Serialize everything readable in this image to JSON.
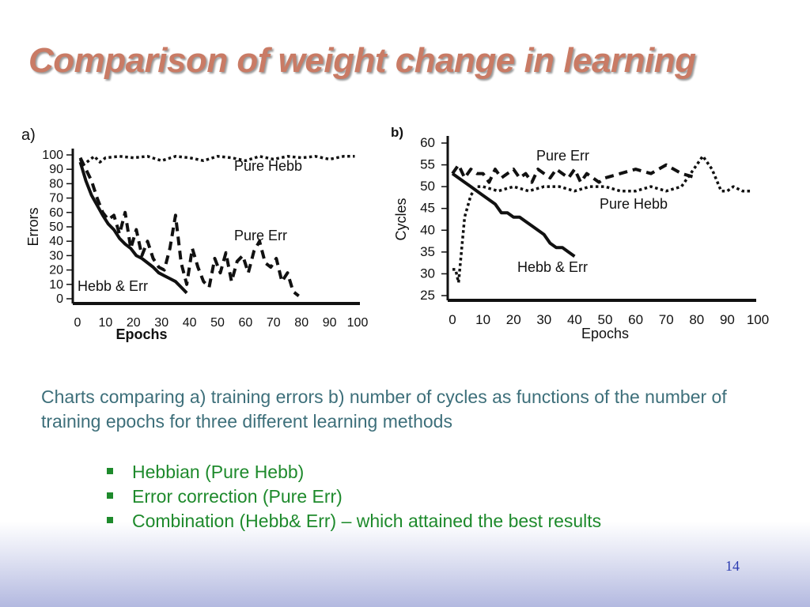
{
  "slide": {
    "title": "Comparison of weight change in learning",
    "caption": "Charts comparing a) training errors b) number of cycles  as functions of the number of training epochs for three different learning methods",
    "bullets": [
      "Hebbian (Pure Hebb)",
      "Error correction (Pure Err)",
      "Combination (Hebb& Err) – which attained the best results"
    ],
    "page_number": "14",
    "colors": {
      "title": "#c97b65",
      "caption": "#3d6f7a",
      "bullets": "#1e8a2c",
      "page_number": "#2b3bb0",
      "lines": "#111111"
    }
  },
  "chart_data": [
    {
      "panel_label": "a)",
      "type": "line",
      "xlabel": "Epochs",
      "ylabel": "Errors",
      "xlim": [
        0,
        100
      ],
      "ylim": [
        0,
        100
      ],
      "xticks": [
        "0",
        "10",
        "20",
        "30",
        "40",
        "50",
        "60",
        "70",
        "80",
        "90",
        "100"
      ],
      "yticks": [
        "100",
        "90",
        "80",
        "70",
        "60",
        "50",
        "40",
        "30",
        "20",
        "10",
        "0"
      ],
      "grid": false,
      "series": [
        {
          "name": "Pure Hebb",
          "style": "dotted",
          "x": [
            1,
            2,
            4,
            6,
            8,
            10,
            15,
            20,
            25,
            30,
            35,
            40,
            45,
            50,
            55,
            60,
            65,
            70,
            75,
            80,
            85,
            90,
            95,
            99
          ],
          "y": [
            97,
            93,
            96,
            99,
            95,
            98,
            99,
            98,
            99,
            96,
            99,
            98,
            96,
            99,
            98,
            96,
            99,
            97,
            99,
            98,
            99,
            97,
            99,
            99
          ]
        },
        {
          "name": "Pure Err",
          "style": "dashed",
          "x": [
            1,
            3,
            5,
            7,
            9,
            11,
            13,
            15,
            17,
            19,
            21,
            23,
            25,
            27,
            29,
            31,
            33,
            35,
            37,
            39,
            41,
            43,
            45,
            47,
            49,
            51,
            53,
            55,
            57,
            59,
            61,
            63,
            65,
            67,
            69,
            71,
            73,
            75,
            77,
            79
          ],
          "y": [
            98,
            90,
            82,
            70,
            60,
            55,
            58,
            45,
            60,
            35,
            48,
            30,
            40,
            28,
            22,
            20,
            35,
            58,
            25,
            10,
            35,
            22,
            12,
            8,
            28,
            18,
            32,
            12,
            26,
            30,
            18,
            33,
            40,
            25,
            22,
            28,
            12,
            18,
            5,
            2
          ]
        },
        {
          "name": "Hebb & Err",
          "style": "solid",
          "x": [
            1,
            3,
            5,
            7,
            9,
            11,
            13,
            15,
            17,
            19,
            21,
            23,
            25,
            27,
            29,
            31,
            33,
            35,
            37,
            39
          ],
          "y": [
            95,
            82,
            72,
            65,
            58,
            52,
            48,
            42,
            38,
            35,
            30,
            28,
            25,
            22,
            18,
            16,
            14,
            12,
            8,
            4
          ]
        }
      ]
    },
    {
      "panel_label": "b)",
      "type": "line",
      "xlabel": "Epochs",
      "ylabel": "Cycles",
      "xlim": [
        0,
        100
      ],
      "ylim": [
        25,
        60
      ],
      "xticks": [
        "0",
        "10",
        "20",
        "30",
        "40",
        "50",
        "60",
        "70",
        "80",
        "90",
        "100"
      ],
      "yticks": [
        "60",
        "55",
        "50",
        "45",
        "40",
        "35",
        "30",
        "25"
      ],
      "grid": false,
      "series": [
        {
          "name": "Pure Err",
          "style": "dashed",
          "x": [
            0,
            2,
            4,
            6,
            8,
            10,
            12,
            14,
            16,
            18,
            20,
            22,
            24,
            26,
            28,
            30,
            32,
            34,
            36,
            38,
            40,
            42,
            44,
            46,
            48,
            50,
            55,
            60,
            65,
            70,
            75,
            80
          ],
          "y": [
            53,
            55,
            52,
            54,
            53,
            53,
            51,
            54,
            52,
            53,
            54,
            52,
            53,
            51,
            54,
            53,
            52,
            54,
            53,
            52,
            54,
            51,
            53,
            52,
            51,
            52,
            53,
            54,
            53,
            55,
            53,
            52
          ]
        },
        {
          "name": "Pure Hebb",
          "style": "dotted",
          "x": [
            0,
            1,
            2,
            4,
            6,
            8,
            10,
            15,
            20,
            25,
            30,
            35,
            40,
            45,
            50,
            55,
            60,
            65,
            70,
            75,
            78,
            80,
            82,
            85,
            88,
            90,
            92,
            95,
            98
          ],
          "y": [
            31,
            31,
            28,
            43,
            48,
            50,
            50,
            49,
            50,
            49,
            50,
            50,
            49,
            50,
            50,
            49,
            49,
            50,
            49,
            50,
            53,
            55,
            57,
            54,
            49,
            49,
            50,
            49,
            49
          ]
        },
        {
          "name": "Hebb & Err",
          "style": "solid",
          "x": [
            0,
            2,
            4,
            6,
            8,
            10,
            12,
            14,
            16,
            18,
            20,
            22,
            24,
            26,
            28,
            30,
            32,
            34,
            36,
            38,
            40
          ],
          "y": [
            53,
            52,
            51,
            50,
            49,
            48,
            47,
            46,
            44,
            44,
            43,
            43,
            42,
            41,
            40,
            39,
            37,
            36,
            36,
            35,
            34
          ]
        }
      ]
    }
  ]
}
